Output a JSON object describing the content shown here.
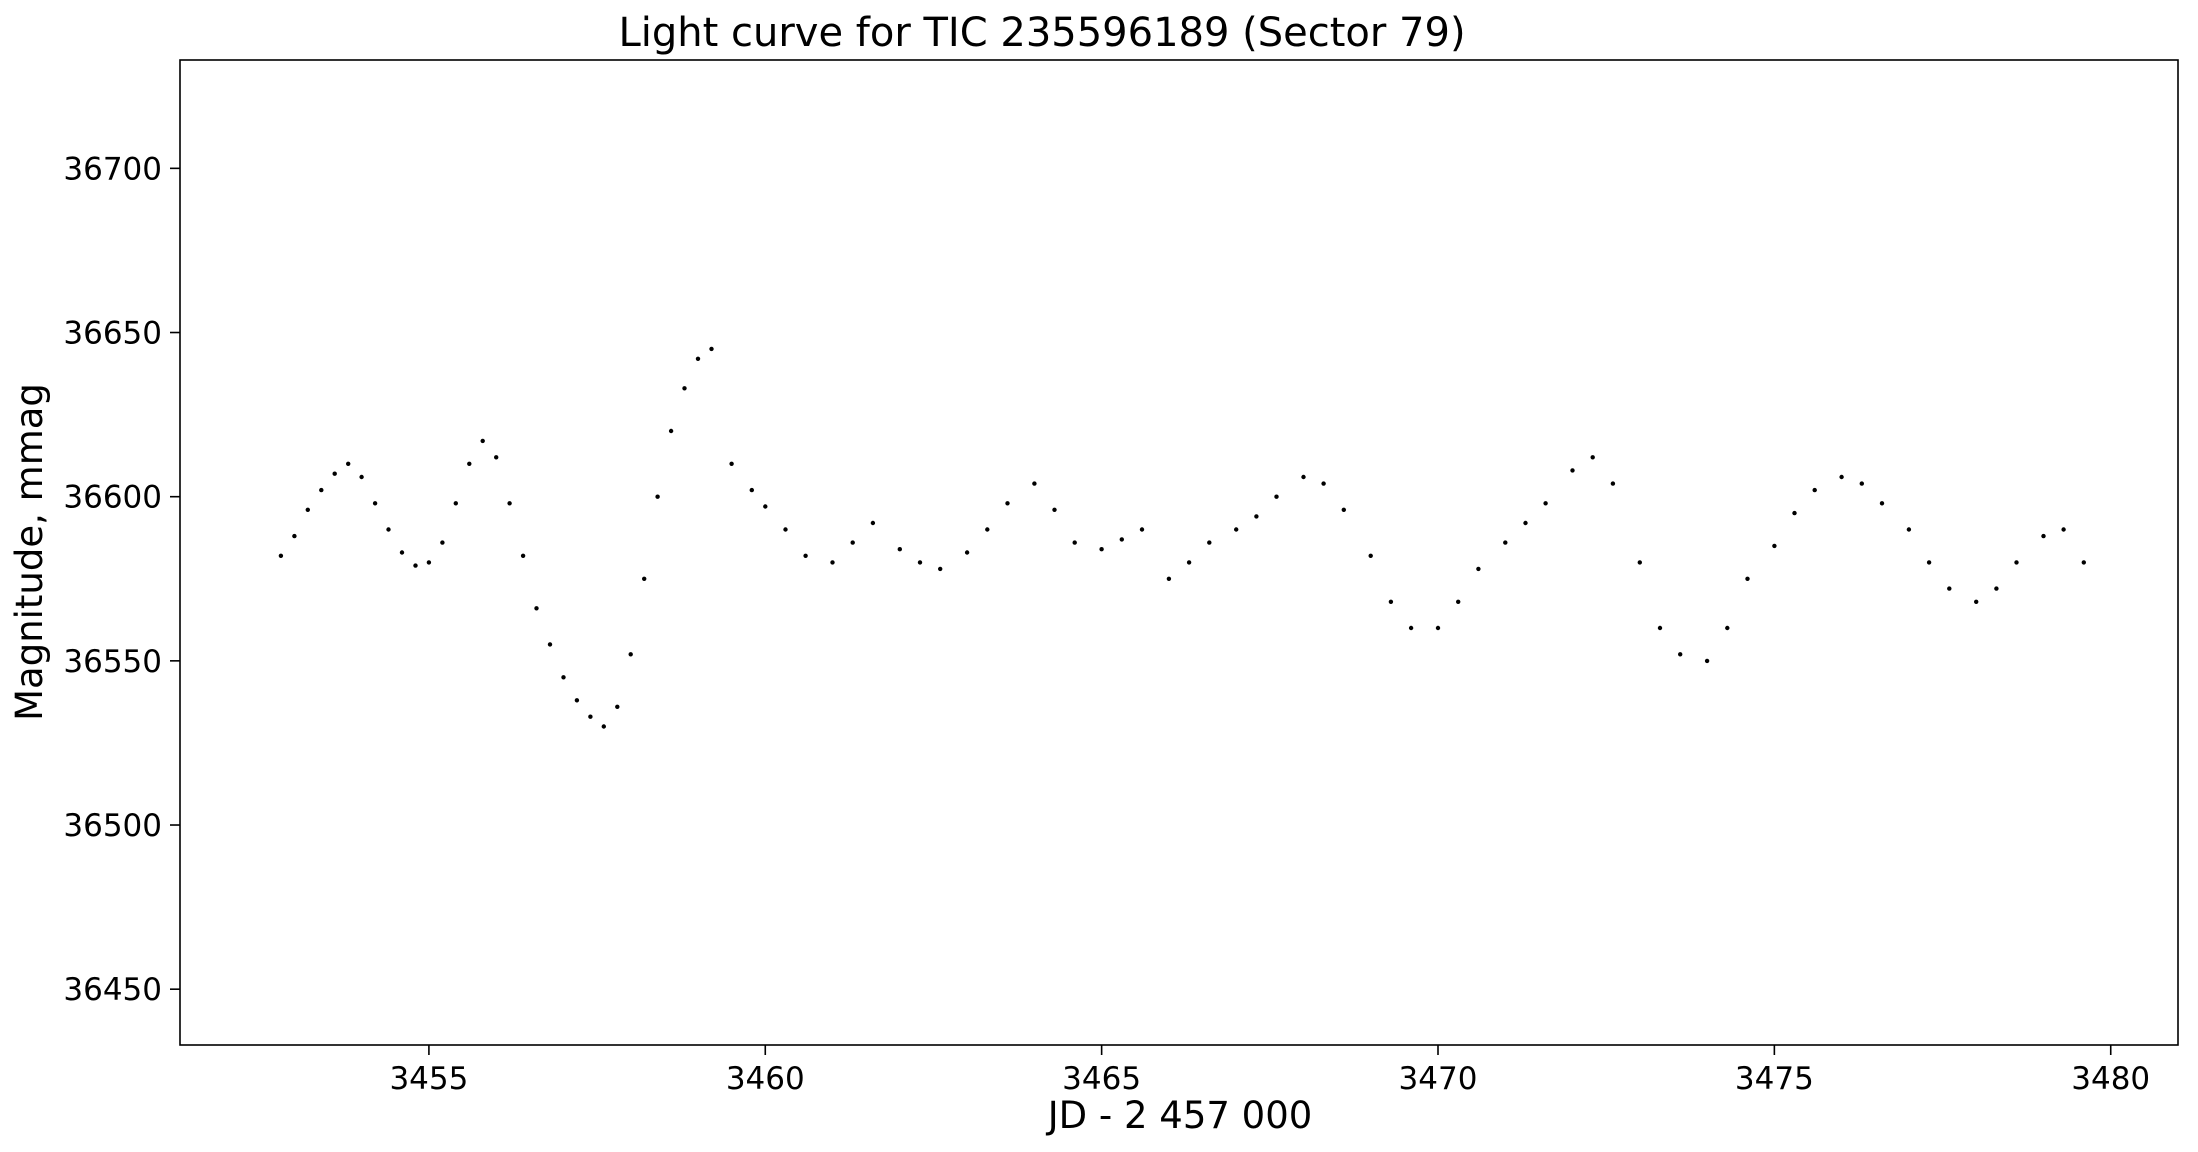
{
  "chart_data": {
    "type": "scatter",
    "title": "Light curve for TIC 235596189 (Sector 79)",
    "xlabel": "JD - 2 457 000",
    "ylabel": "Magnitude, mmag",
    "xlim": [
      3451.3,
      3481.0
    ],
    "ylim": [
      36433,
      36733
    ],
    "xticks": [
      3455,
      3460,
      3465,
      3470,
      3475,
      3480
    ],
    "xtick_labels": [
      "3455",
      "3460",
      "3465",
      "3470",
      "3475",
      "3480"
    ],
    "yticks": [
      36450,
      36500,
      36550,
      36600,
      36650,
      36700
    ],
    "ytick_labels": [
      "36450",
      "36500",
      "36550",
      "36600",
      "36650",
      "36700"
    ],
    "grid": false,
    "marker_color": "#000000",
    "series": [
      {
        "x": [
          3452.8,
          3453.0,
          3453.2,
          3453.4,
          3453.6,
          3453.8,
          3454.0,
          3454.2,
          3454.4,
          3454.6,
          3454.8,
          3455.0,
          3455.2,
          3455.4,
          3455.6,
          3455.8,
          3456.0,
          3456.2,
          3456.4,
          3456.6,
          3456.8,
          3457.0,
          3457.2,
          3457.4,
          3457.6,
          3457.8,
          3458.0,
          3458.2,
          3458.4,
          3458.6,
          3458.8,
          3459.0,
          3459.2,
          3459.5,
          3459.8,
          3460.0,
          3460.3,
          3460.6,
          3461.0,
          3461.3,
          3461.6,
          3462.0,
          3462.3,
          3462.6,
          3463.0,
          3463.3,
          3463.6,
          3464.0,
          3464.3,
          3464.6,
          3465.0,
          3465.3,
          3465.6,
          3466.0,
          3466.3,
          3466.6,
          3467.0,
          3467.3,
          3467.6,
          3468.0,
          3468.3,
          3468.6,
          3469.0,
          3469.3,
          3469.6,
          3470.0,
          3470.3,
          3470.6,
          3471.0,
          3471.3,
          3471.6,
          3472.0,
          3472.3,
          3472.6,
          3473.0,
          3473.3,
          3473.6,
          3474.0,
          3474.3,
          3474.6,
          3475.0,
          3475.3,
          3475.6,
          3476.0,
          3476.3,
          3476.6,
          3477.0,
          3477.3,
          3477.6,
          3478.0,
          3478.3,
          3478.6,
          3479.0,
          3479.3,
          3479.6
        ],
        "y": [
          36582,
          36588,
          36596,
          36602,
          36607,
          36610,
          36606,
          36598,
          36590,
          36583,
          36579,
          36580,
          36586,
          36598,
          36610,
          36617,
          36612,
          36598,
          36582,
          36566,
          36555,
          36545,
          36538,
          36533,
          36530,
          36536,
          36552,
          36575,
          36600,
          36620,
          36633,
          36642,
          36645,
          36610,
          36602,
          36597,
          36590,
          36582,
          36580,
          36586,
          36592,
          36584,
          36580,
          36578,
          36583,
          36590,
          36598,
          36604,
          36596,
          36586,
          36584,
          36587,
          36590,
          36575,
          36580,
          36586,
          36590,
          36594,
          36600,
          36606,
          36604,
          36596,
          36582,
          36568,
          36560,
          36560,
          36568,
          36578,
          36586,
          36592,
          36598,
          36608,
          36612,
          36604,
          36580,
          36560,
          36552,
          36550,
          36560,
          36575,
          36585,
          36595,
          36602,
          36606,
          36604,
          36598,
          36590,
          36580,
          36572,
          36568,
          36572,
          36580,
          36588,
          36590,
          36580
        ]
      }
    ]
  }
}
